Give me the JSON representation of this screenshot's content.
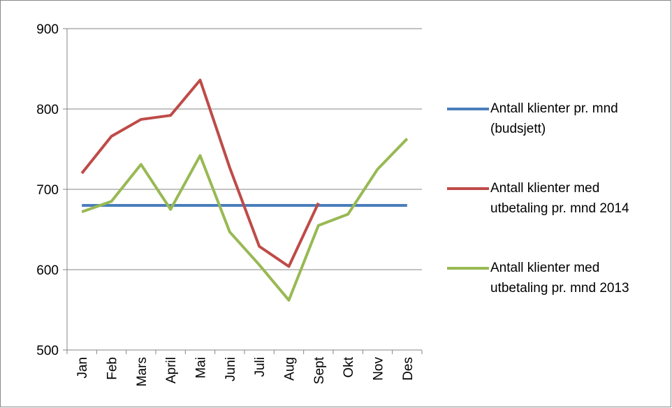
{
  "chart_data": {
    "type": "line",
    "categories": [
      "Jan",
      "Feb",
      "Mars",
      "April",
      "Mai",
      "Juni",
      "Juli",
      "Aug",
      "Sept",
      "Okt",
      "Nov",
      "Des"
    ],
    "series": [
      {
        "name": "Antall klienter pr. mnd (budsjett)",
        "color": "#4a7ebb",
        "values": [
          680,
          680,
          680,
          680,
          680,
          680,
          680,
          680,
          680,
          680,
          680,
          680
        ]
      },
      {
        "name": "Antall klienter med utbetaling pr. mnd 2014",
        "color": "#be4b48",
        "values": [
          720,
          766,
          787,
          792,
          836,
          727,
          629,
          604,
          683,
          null,
          null,
          null
        ]
      },
      {
        "name": "Antall klienter med utbetaling pr. mnd 2013",
        "color": "#98b954",
        "values": [
          672,
          685,
          731,
          675,
          742,
          647,
          606,
          562,
          655,
          669,
          725,
          763
        ]
      }
    ],
    "ylim": [
      500,
      900
    ],
    "yticks": [
      500,
      600,
      700,
      800,
      900
    ],
    "grid": true,
    "legend": "right"
  }
}
